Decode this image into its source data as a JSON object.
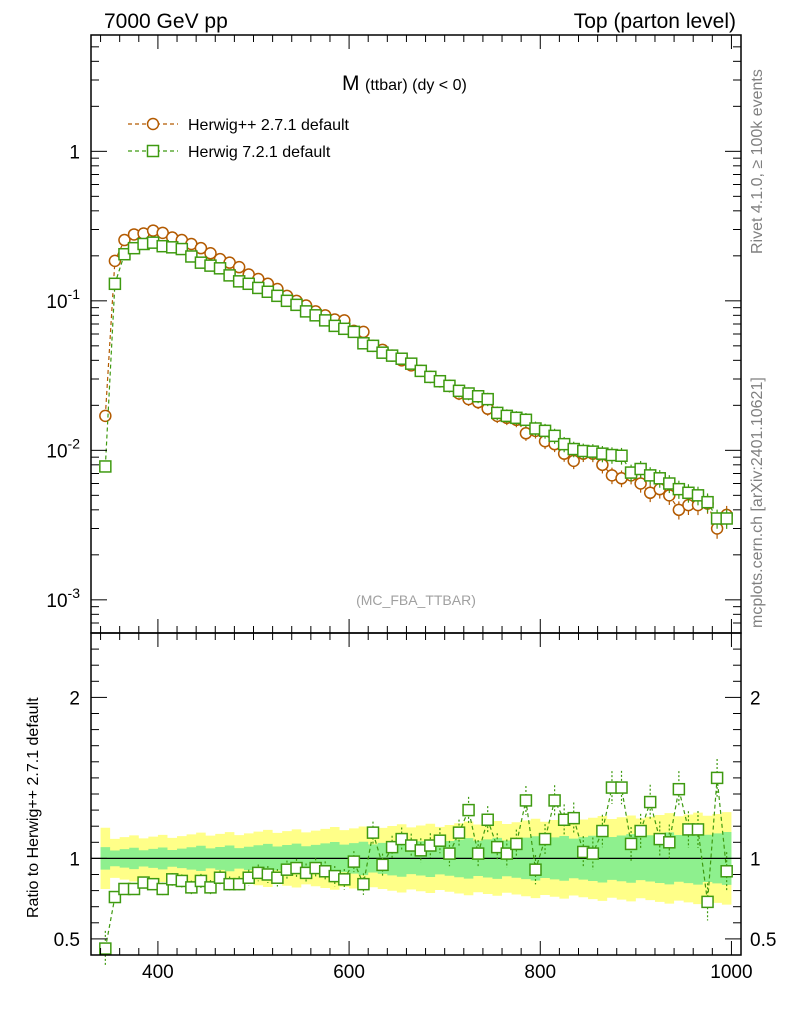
{
  "header": {
    "left": "7000 GeV pp",
    "right": "Top (parton level)"
  },
  "side_labels": {
    "rivet": "Rivet 4.1.0, ≥ 100k events",
    "mcplots": "mcplots.cern.ch [arXiv:2401.10621]"
  },
  "chart_data": {
    "type": "scatter",
    "title_main": "M",
    "title_sub": "(ttbar) (dy < 0)",
    "watermark": "(MC_FBA_TTBAR)",
    "xlabel": "",
    "ylabel_ratio": "Ratio to Herwig++ 2.7.1 default",
    "xlim": [
      330,
      1010
    ],
    "ylim_log": [
      0.0006,
      6
    ],
    "ylim_ratio": [
      0.4,
      2.4
    ],
    "x_ticks": [
      "400",
      "600",
      "800",
      "1000"
    ],
    "y_ticks_main": [
      "1",
      "10^-1",
      "10^-2",
      "10^-3"
    ],
    "y_ticks_ratio": [
      "0.5",
      "1",
      "2"
    ],
    "legend": [
      "Herwig++ 2.7.1 default",
      "Herwig 7.2.1 default"
    ],
    "colors": {
      "herwigpp": "#b35a00",
      "herwig7": "#3e9a10",
      "band_inner": "#8ef08e",
      "band_outer": "#ffff88"
    },
    "x": [
      345,
      355,
      365,
      375,
      385,
      395,
      405,
      415,
      425,
      435,
      445,
      455,
      465,
      475,
      485,
      495,
      505,
      515,
      525,
      535,
      545,
      555,
      565,
      575,
      585,
      595,
      605,
      615,
      625,
      635,
      645,
      655,
      665,
      675,
      685,
      695,
      705,
      715,
      725,
      735,
      745,
      755,
      765,
      775,
      785,
      795,
      805,
      815,
      825,
      835,
      845,
      855,
      865,
      875,
      885,
      895,
      905,
      915,
      925,
      935,
      945,
      955,
      965,
      975,
      985,
      995
    ],
    "series": [
      {
        "name": "Herwig++ 2.7.1 default",
        "values": [
          0.017,
          0.185,
          0.255,
          0.278,
          0.282,
          0.295,
          0.285,
          0.265,
          0.255,
          0.24,
          0.225,
          0.208,
          0.19,
          0.18,
          0.168,
          0.15,
          0.14,
          0.13,
          0.12,
          0.108,
          0.1,
          0.093,
          0.085,
          0.08,
          0.075,
          0.074,
          0.063,
          0.062,
          0.05,
          0.047,
          0.043,
          0.04,
          0.037,
          0.034,
          0.031,
          0.029,
          0.027,
          0.024,
          0.022,
          0.021,
          0.019,
          0.017,
          0.0165,
          0.016,
          0.013,
          0.0135,
          0.0115,
          0.011,
          0.0095,
          0.0085,
          0.0095,
          0.0095,
          0.008,
          0.0068,
          0.0065,
          0.0068,
          0.006,
          0.0052,
          0.0055,
          0.005,
          0.004,
          0.0043,
          0.0043,
          0.0044,
          0.003,
          0.0037
        ]
      },
      {
        "name": "Herwig 7.2.1 default",
        "values": [
          0.0078,
          0.13,
          0.205,
          0.225,
          0.24,
          0.245,
          0.232,
          0.228,
          0.222,
          0.198,
          0.18,
          0.172,
          0.165,
          0.148,
          0.135,
          0.13,
          0.122,
          0.115,
          0.108,
          0.1,
          0.094,
          0.085,
          0.08,
          0.074,
          0.068,
          0.065,
          0.062,
          0.052,
          0.05,
          0.045,
          0.043,
          0.041,
          0.038,
          0.034,
          0.031,
          0.029,
          0.027,
          0.025,
          0.024,
          0.023,
          0.022,
          0.0178,
          0.017,
          0.0165,
          0.016,
          0.014,
          0.0135,
          0.0125,
          0.011,
          0.0102,
          0.0099,
          0.0098,
          0.0095,
          0.0093,
          0.0092,
          0.0071,
          0.0075,
          0.0068,
          0.0065,
          0.006,
          0.0055,
          0.0052,
          0.005,
          0.0045,
          0.0035,
          0.0035
        ]
      }
    ],
    "ratio_values": [
      0.44,
      0.76,
      0.81,
      0.81,
      0.85,
      0.84,
      0.81,
      0.87,
      0.86,
      0.82,
      0.86,
      0.82,
      0.88,
      0.84,
      0.84,
      0.88,
      0.91,
      0.9,
      0.88,
      0.93,
      0.94,
      0.91,
      0.94,
      0.92,
      0.89,
      0.87,
      0.98,
      0.84,
      1.16,
      0.96,
      1.07,
      1.12,
      1.08,
      1.05,
      1.08,
      1.11,
      1.03,
      1.16,
      1.3,
      1.03,
      1.24,
      1.07,
      1.03,
      1.09,
      1.36,
      0.93,
      1.12,
      1.36,
      1.24,
      1.25,
      1.04,
      1.03,
      1.17,
      1.44,
      1.44,
      1.09,
      1.17,
      1.35,
      1.12,
      1.1,
      1.43,
      1.18,
      1.18,
      0.73,
      1.5,
      0.92
    ]
  }
}
